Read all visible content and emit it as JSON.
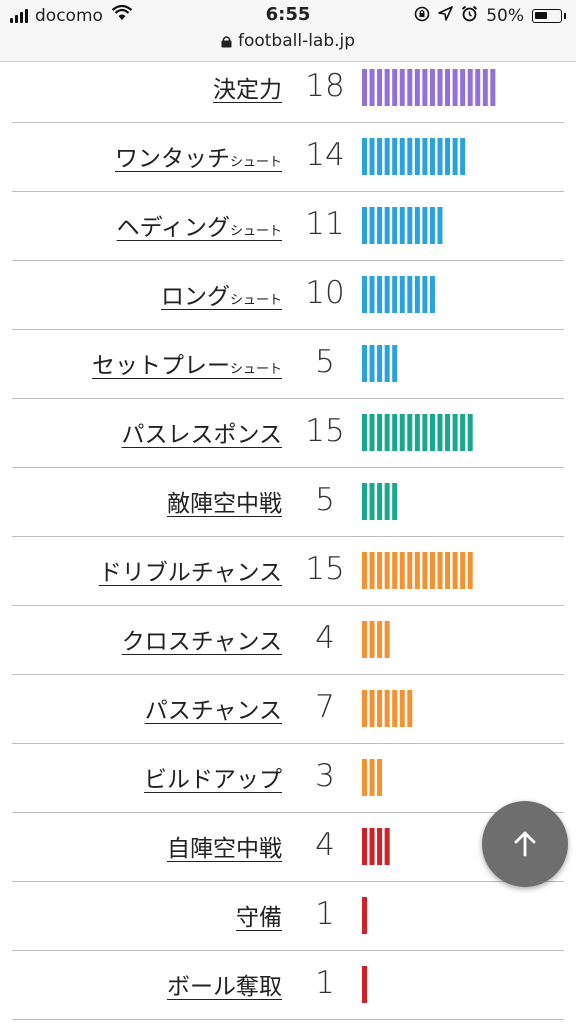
{
  "status_bar": {
    "carrier": "docomo",
    "time": "6:55",
    "battery_percent": "50%",
    "battery_level": 0.5,
    "url": "football-lab.jp"
  },
  "colors": {
    "purple": "#9370d8",
    "blue": "#2ba2dc",
    "teal": "#1aa78f",
    "orange": "#f39233",
    "red": "#cf2128"
  },
  "rows": [
    {
      "label": "決定力",
      "suffix": "",
      "value": "18",
      "count": 18,
      "color": "purple"
    },
    {
      "label": "ワンタッチ",
      "suffix": "シュート",
      "value": "14",
      "count": 14,
      "color": "blue"
    },
    {
      "label": "ヘディング",
      "suffix": "シュート",
      "value": "11",
      "count": 11,
      "color": "blue"
    },
    {
      "label": "ロング",
      "suffix": "シュート",
      "value": "10",
      "count": 10,
      "color": "blue"
    },
    {
      "label": "セットプレー",
      "suffix": "シュート",
      "value": "5",
      "count": 5,
      "color": "blue"
    },
    {
      "label": "パスレスポンス",
      "suffix": "",
      "value": "15",
      "count": 15,
      "color": "teal"
    },
    {
      "label": "敵陣空中戦",
      "suffix": "",
      "value": "5",
      "count": 5,
      "color": "teal"
    },
    {
      "label": "ドリブルチャンス",
      "suffix": "",
      "value": "15",
      "count": 15,
      "color": "orange"
    },
    {
      "label": "クロスチャンス",
      "suffix": "",
      "value": "4",
      "count": 4,
      "color": "orange"
    },
    {
      "label": "パスチャンス",
      "suffix": "",
      "value": "7",
      "count": 7,
      "color": "orange"
    },
    {
      "label": "ビルドアップ",
      "suffix": "",
      "value": "3",
      "count": 3,
      "color": "orange"
    },
    {
      "label": "自陣空中戦",
      "suffix": "",
      "value": "4",
      "count": 4,
      "color": "red"
    },
    {
      "label": "守備",
      "suffix": "",
      "value": "1",
      "count": 1,
      "color": "red"
    },
    {
      "label": "ボール奪取",
      "suffix": "",
      "value": "1",
      "count": 1,
      "color": "red"
    }
  ],
  "fab": {
    "icon": "arrow-up-icon"
  }
}
